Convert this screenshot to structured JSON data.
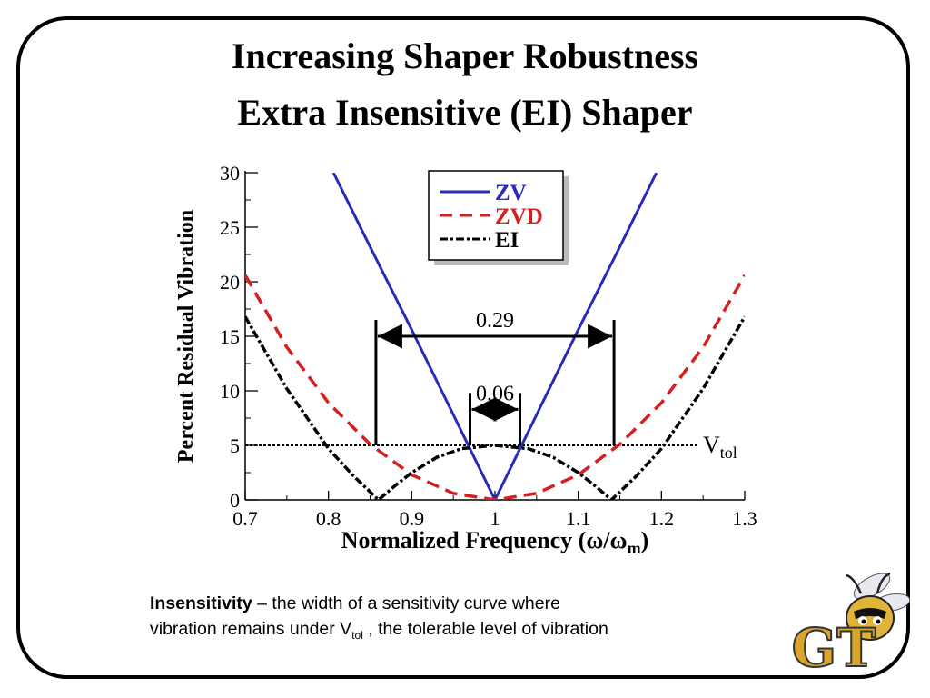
{
  "slide": {
    "title_line1": "Increasing Shaper Robustness",
    "title_line2": "Extra Insensitive (EI) Shaper"
  },
  "caption": {
    "term": "Insensitivity",
    "text1": " – the width of a sensitivity curve where",
    "text2": "vibration remains under V",
    "sub": "tol",
    "text3": " , the tolerable level of vibration"
  },
  "logo": {
    "text": "GT",
    "icon": "yellow-jacket-mascot-icon"
  },
  "chart_data": {
    "type": "line",
    "xlabel": "Normalized Frequency (ω/ω",
    "xlabel_sub": "m",
    "xlabel_end": ")",
    "ylabel": "Percent Residual Vibration",
    "xlim": [
      0.7,
      1.3
    ],
    "ylim": [
      0,
      30
    ],
    "x_ticks": [
      "0.7",
      "0.8",
      "0.9",
      "1",
      "1.1",
      "1.2",
      "1.3"
    ],
    "y_ticks": [
      "0",
      "5",
      "10",
      "15",
      "20",
      "25",
      "30"
    ],
    "legend_position": "top-center",
    "series": [
      {
        "name": "ZV",
        "color": "#2a2ab8",
        "style": "solid",
        "x": [
          0.806,
          0.85,
          0.9,
          0.95,
          1.0,
          1.05,
          1.1,
          1.15,
          1.194
        ],
        "y": [
          30,
          23.2,
          15.6,
          7.8,
          0,
          7.8,
          15.6,
          23.2,
          30
        ]
      },
      {
        "name": "ZVD",
        "color": "#d42020",
        "style": "dashed",
        "x": [
          0.7,
          0.75,
          0.8,
          0.85,
          0.9,
          0.95,
          1.0,
          1.05,
          1.1,
          1.15,
          1.2,
          1.25,
          1.3
        ],
        "y": [
          20.6,
          14.0,
          8.9,
          5.1,
          2.3,
          0.6,
          0,
          0.6,
          2.3,
          5.1,
          8.9,
          14.0,
          20.6
        ]
      },
      {
        "name": "EI",
        "color": "#000000",
        "style": "dash-dot",
        "x": [
          0.7,
          0.75,
          0.8,
          0.83,
          0.86,
          0.88,
          0.9,
          0.93,
          0.96,
          1.0,
          1.04,
          1.07,
          1.1,
          1.12,
          1.14,
          1.17,
          1.2,
          1.25,
          1.3
        ],
        "y": [
          16.8,
          10.2,
          4.7,
          2.2,
          0,
          1.3,
          2.5,
          3.9,
          4.7,
          5.0,
          4.7,
          3.9,
          2.5,
          1.3,
          0,
          2.2,
          4.7,
          10.2,
          16.8
        ]
      }
    ],
    "vtol": {
      "value": 5,
      "label": "V",
      "label_sub": "tol"
    },
    "annotations": [
      {
        "label": "0.29",
        "x1": 0.857,
        "x2": 1.143,
        "y": 15
      },
      {
        "label": "0.06",
        "x1": 0.97,
        "x2": 1.03,
        "y": 8.3
      }
    ]
  }
}
